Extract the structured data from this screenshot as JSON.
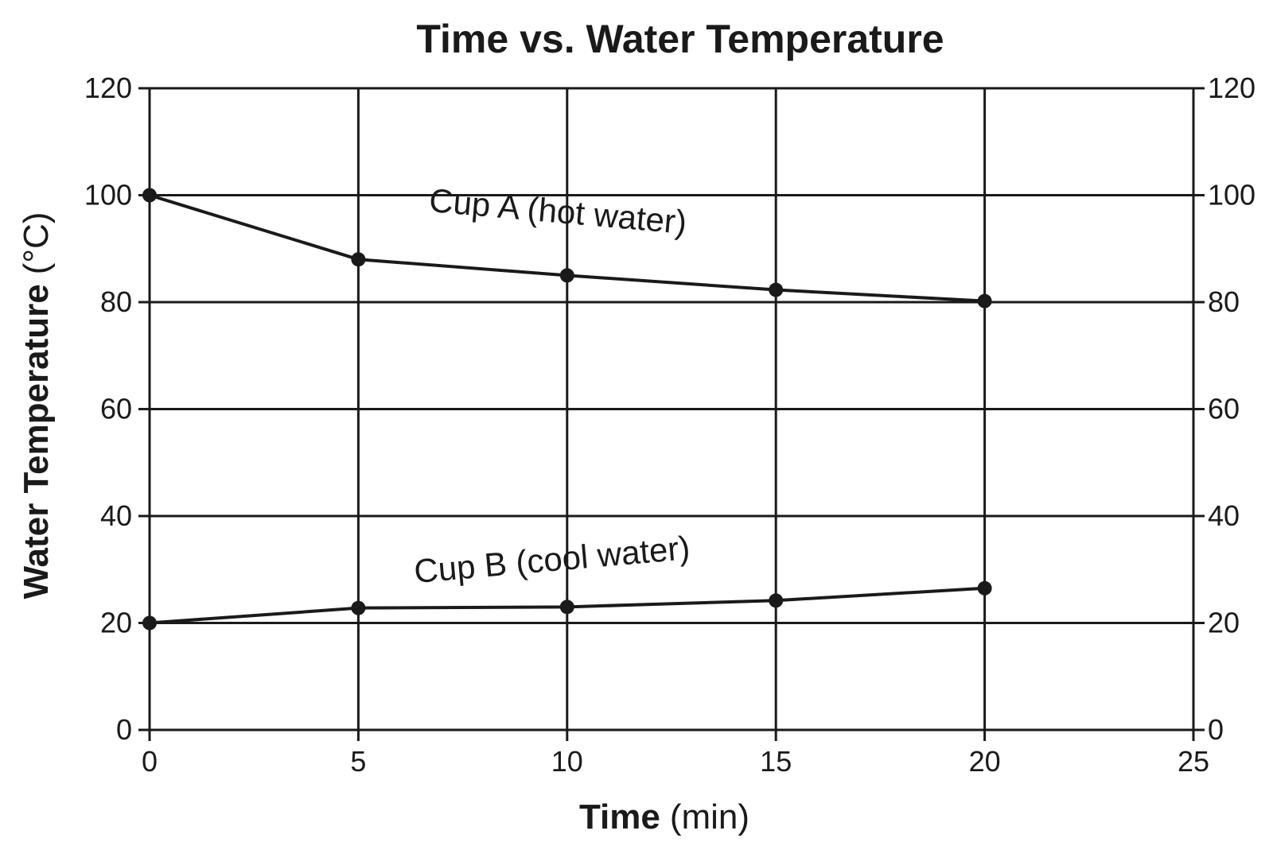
{
  "chart_data": {
    "type": "line",
    "title": "Time vs. Water Temperature",
    "xlabel": {
      "bold": "Time",
      "unit": "(min)"
    },
    "ylabel": {
      "bold": "Water Temperature",
      "unit": "(°C)"
    },
    "xlim": [
      0,
      25
    ],
    "ylim": [
      0,
      120
    ],
    "xticks": [
      0,
      5,
      10,
      15,
      20,
      25
    ],
    "yticks": [
      0,
      20,
      40,
      60,
      80,
      100,
      120
    ],
    "right_axis_ticks": [
      0,
      20,
      40,
      60,
      80,
      100,
      120
    ],
    "grid": true,
    "series": [
      {
        "name": "Cup A (hot water)",
        "x": [
          0,
          5,
          10,
          15,
          20
        ],
        "y": [
          100,
          88,
          85,
          82.3,
          80.2
        ]
      },
      {
        "name": "Cup B (cool water)",
        "x": [
          0,
          5,
          10,
          15,
          20
        ],
        "y": [
          20,
          22.8,
          23,
          24.2,
          26.5
        ]
      }
    ],
    "colors": {
      "line": "#1a1a1a",
      "grid": "#1a1a1a",
      "background": "#ffffff"
    }
  }
}
